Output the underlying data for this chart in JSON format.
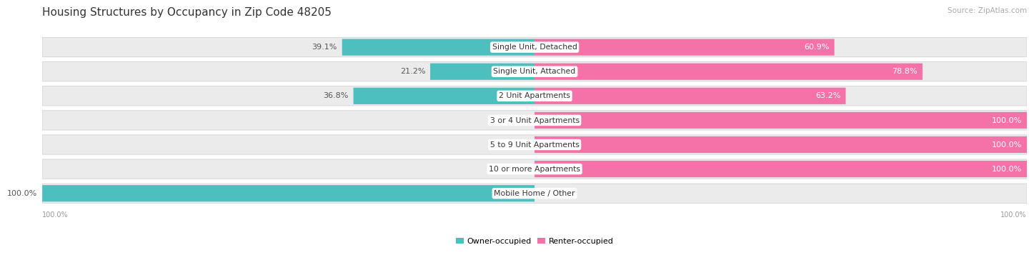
{
  "title": "Housing Structures by Occupancy in Zip Code 48205",
  "source": "Source: ZipAtlas.com",
  "categories": [
    "Single Unit, Detached",
    "Single Unit, Attached",
    "2 Unit Apartments",
    "3 or 4 Unit Apartments",
    "5 to 9 Unit Apartments",
    "10 or more Apartments",
    "Mobile Home / Other"
  ],
  "owner_pct": [
    39.1,
    21.2,
    36.8,
    0.0,
    0.0,
    0.0,
    100.0
  ],
  "renter_pct": [
    60.9,
    78.8,
    63.2,
    100.0,
    100.0,
    100.0,
    0.0
  ],
  "owner_color": "#4DBFBF",
  "renter_color": "#F472A8",
  "renter_color_light": "#FAADC8",
  "bg_color": "#ffffff",
  "row_bg_color": "#ebebeb",
  "title_fontsize": 11,
  "source_fontsize": 7.5,
  "label_fontsize": 8,
  "bar_height": 0.68,
  "figsize": [
    14.06,
    3.41
  ],
  "left_axis_label": "100.0%",
  "right_axis_label": "100.0%"
}
